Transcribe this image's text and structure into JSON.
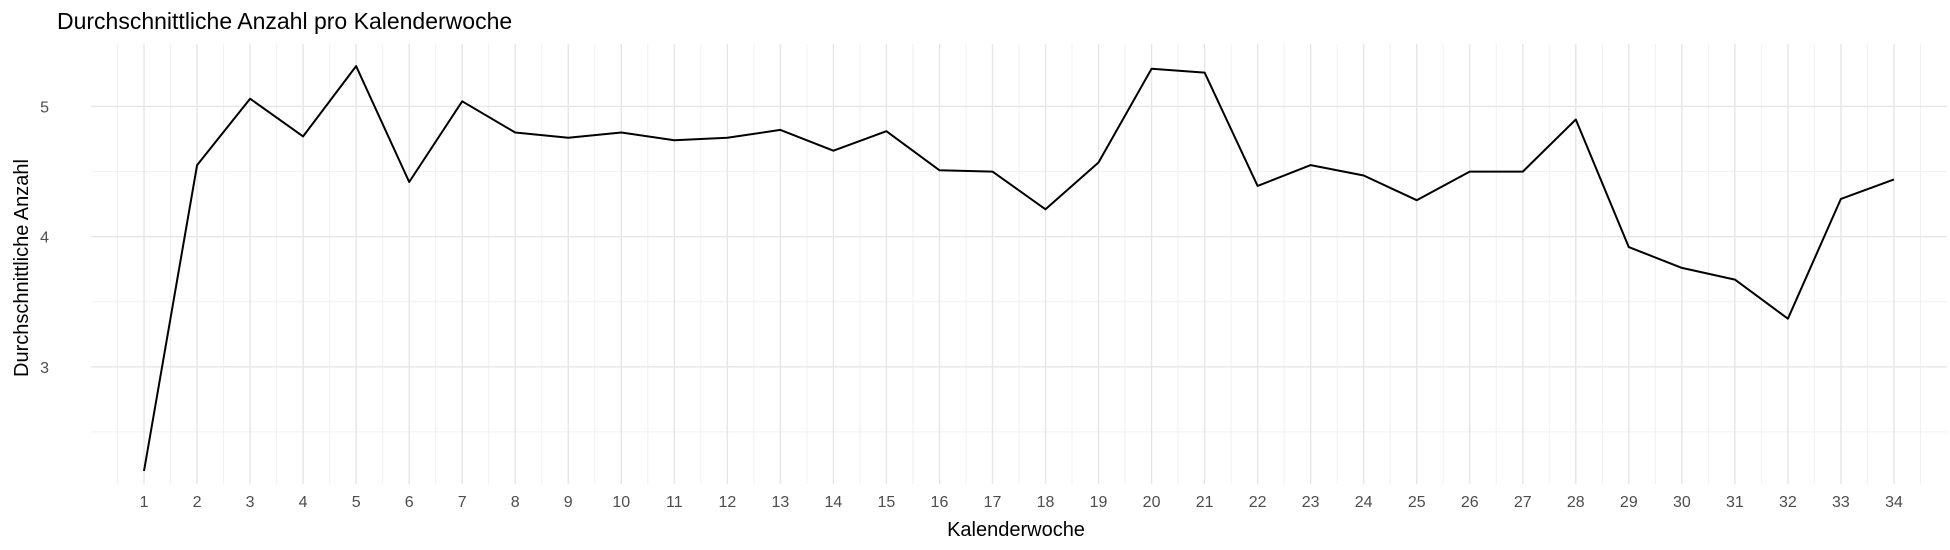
{
  "chart_data": {
    "type": "line",
    "title": "Durchschnittliche Anzahl pro Kalenderwoche",
    "xlabel": "Kalenderwoche",
    "ylabel": "Durchschnittliche Anzahl",
    "x": [
      1,
      2,
      3,
      4,
      5,
      6,
      7,
      8,
      9,
      10,
      11,
      12,
      13,
      14,
      15,
      16,
      17,
      18,
      19,
      20,
      21,
      22,
      23,
      24,
      25,
      26,
      27,
      28,
      29,
      30,
      31,
      32,
      33,
      34
    ],
    "series": [
      {
        "values": [
          2.2,
          4.55,
          5.06,
          4.77,
          5.31,
          4.42,
          5.04,
          4.8,
          4.76,
          4.8,
          4.74,
          4.76,
          4.82,
          4.66,
          4.81,
          4.51,
          4.5,
          4.21,
          4.57,
          5.29,
          5.26,
          4.39,
          4.55,
          4.47,
          4.28,
          4.5,
          4.5,
          4.9,
          3.92,
          3.76,
          3.67,
          3.37,
          4.29,
          4.44
        ],
        "color": "#000000"
      }
    ],
    "xlim": [
      0.0,
      35.0
    ],
    "ylim": [
      2.1,
      5.48
    ],
    "y_ticks": [
      3,
      4,
      5
    ],
    "y_minor_ticks": [
      2.5,
      3.5,
      4.5
    ],
    "grid": true,
    "theme": "minimal"
  }
}
